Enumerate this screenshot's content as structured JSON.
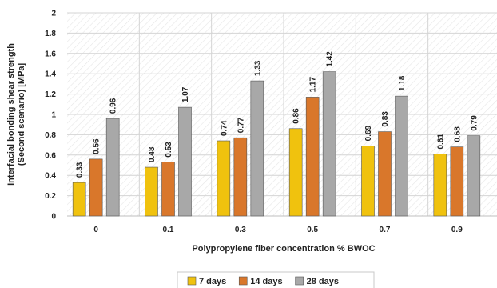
{
  "chart_data": {
    "type": "bar",
    "categories": [
      "0",
      "0.1",
      "0.3",
      "0.5",
      "0.7",
      "0.9"
    ],
    "series": [
      {
        "name": "7 days",
        "color": "#F0C20E",
        "values": [
          0.33,
          0.48,
          0.74,
          0.86,
          0.69,
          0.61
        ]
      },
      {
        "name": "14 days",
        "color": "#D9772B",
        "values": [
          0.56,
          0.53,
          0.77,
          1.17,
          0.83,
          0.68
        ]
      },
      {
        "name": "28 days",
        "color": "#A8A8A8",
        "values": [
          0.96,
          1.07,
          1.33,
          1.42,
          1.18,
          0.79
        ]
      }
    ],
    "xlabel": "Polypropylene fiber  concentration % BWOC",
    "ylabel_lines": [
      "Interfacial bonding shear strength",
      "(Second scenario) [MPa]"
    ],
    "ylim": [
      0,
      2
    ],
    "yticks": [
      "0",
      "0.2",
      "0.4",
      "0.6",
      "0.8",
      "1",
      "1.2",
      "1.4",
      "1.6",
      "1.8",
      "2"
    ],
    "grid": true,
    "legend_position": "bottom"
  }
}
